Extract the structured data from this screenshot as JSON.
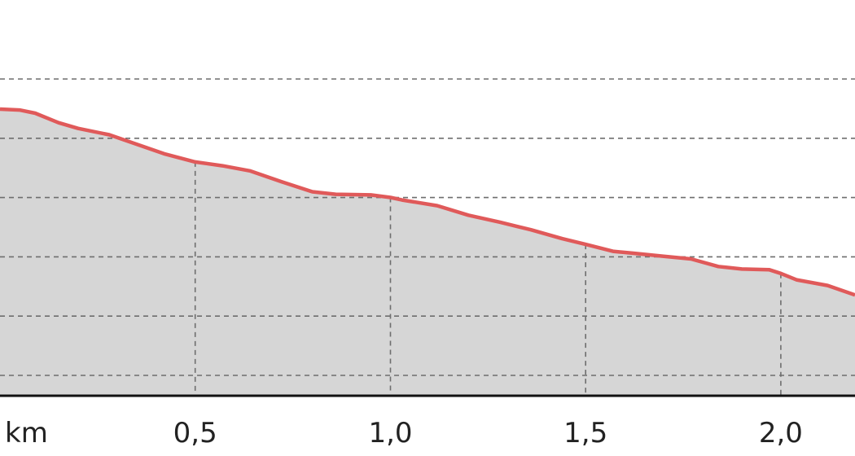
{
  "chart_data": {
    "type": "area",
    "title": "",
    "xlabel": "km",
    "ylabel": "",
    "x_unit": "km",
    "xlim": [
      0.0,
      2.19
    ],
    "x_ticks": [
      0.5,
      1.0,
      1.5,
      2.0
    ],
    "x_tick_labels": [
      "0,5",
      "1,0",
      "1,5",
      "2,0"
    ],
    "y_gridlines": 6,
    "grid": true,
    "colors": {
      "line": "#e05a5a",
      "fill": "#d6d6d6",
      "grid": "#6e6e6e",
      "axis": "#111111"
    },
    "series": [
      {
        "x": [
          0.0,
          0.05,
          0.09,
          0.15,
          0.2,
          0.28,
          0.35,
          0.42,
          0.5,
          0.57,
          0.64,
          0.72,
          0.8,
          0.86,
          0.95,
          1.0,
          1.03,
          1.12,
          1.2,
          1.28,
          1.36,
          1.44,
          1.5,
          1.57,
          1.62,
          1.7,
          1.77,
          1.84,
          1.9,
          1.97,
          2.0,
          2.04,
          2.12,
          2.19
        ],
        "elevation_level": [
          0.905,
          0.902,
          0.892,
          0.862,
          0.844,
          0.824,
          0.794,
          0.764,
          0.738,
          0.726,
          0.71,
          0.676,
          0.644,
          0.636,
          0.634,
          0.626,
          0.618,
          0.6,
          0.57,
          0.548,
          0.524,
          0.496,
          0.478,
          0.456,
          0.45,
          0.44,
          0.432,
          0.408,
          0.4,
          0.398,
          0.386,
          0.366,
          0.348,
          0.318
        ]
      }
    ]
  }
}
